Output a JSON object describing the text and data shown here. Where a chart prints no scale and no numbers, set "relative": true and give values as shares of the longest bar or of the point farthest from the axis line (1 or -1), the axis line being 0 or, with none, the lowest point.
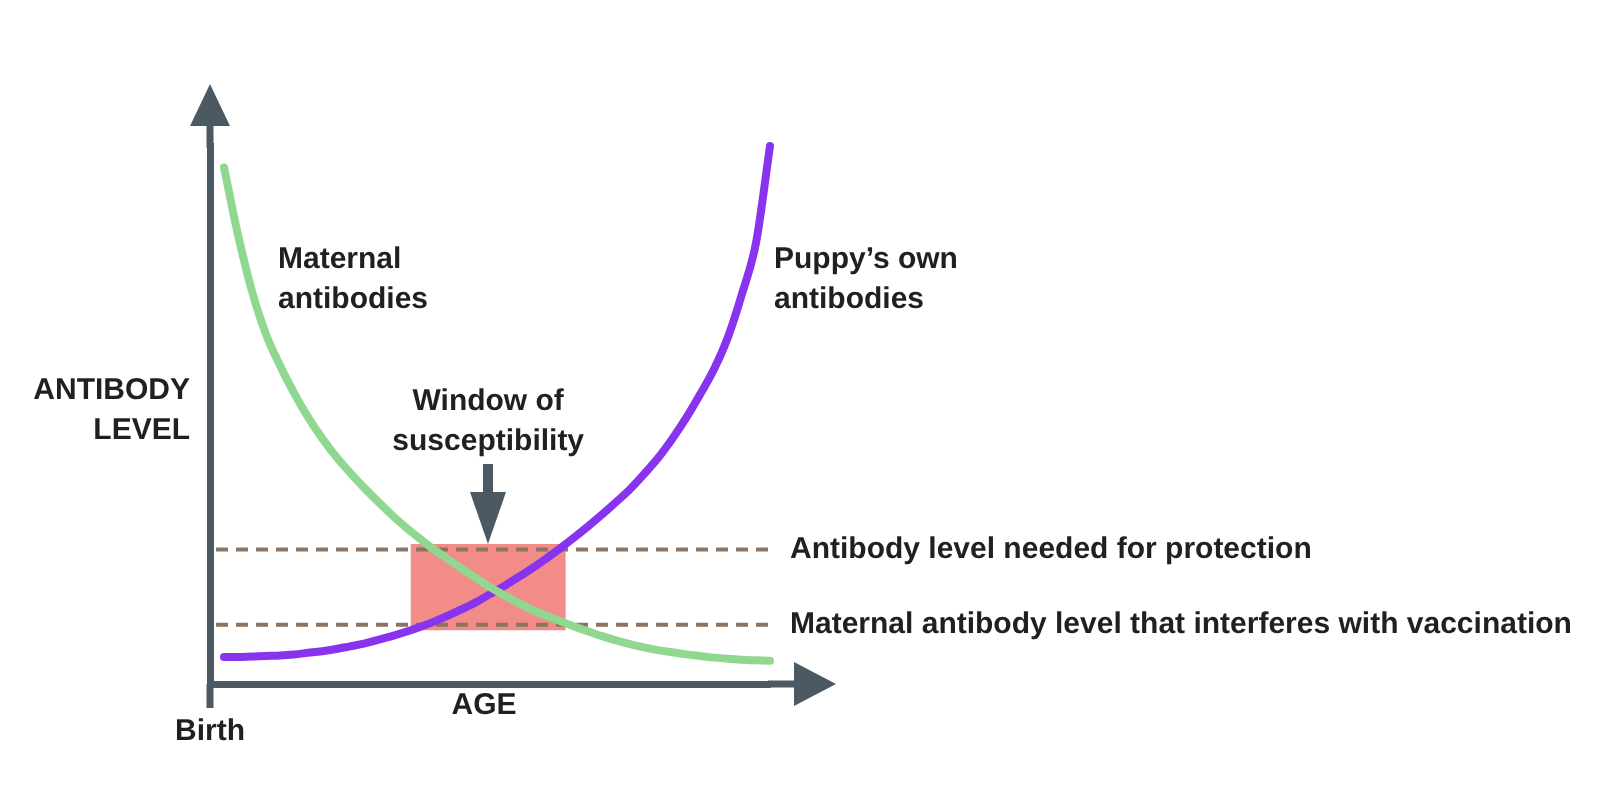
{
  "chart_data": {
    "type": "line",
    "relative": true,
    "xlabel": "AGE",
    "ylabel": "ANTIBODY LEVEL",
    "tick_labels": false,
    "annotations": [
      "Birth"
    ],
    "categories": [
      null,
      null,
      null,
      null,
      null,
      null,
      null,
      null,
      null,
      null,
      null,
      null,
      null,
      null,
      null,
      null,
      null,
      null,
      null,
      null,
      null,
      null,
      null,
      null,
      null,
      null,
      null,
      null,
      null,
      null,
      null,
      null,
      null,
      null,
      null,
      null,
      null,
      null,
      null,
      null,
      null
    ],
    "series": [
      {
        "name": "Maternal antibodies",
        "color": "#90d890",
        "values": [
          null,
          0.96,
          0.835,
          0.73,
          0.65,
          0.592,
          0.541,
          0.496,
          0.457,
          0.423,
          0.393,
          0.365,
          0.339,
          0.314,
          0.291,
          0.27,
          0.25,
          0.232,
          0.214,
          0.197,
          0.18,
          0.165,
          0.151,
          0.138,
          0.127,
          0.117,
          0.107,
          0.098,
          0.089,
          0.081,
          0.074,
          0.068,
          0.063,
          0.059,
          0.055,
          0.052,
          0.049,
          0.047,
          0.045,
          0.044,
          0.043
        ]
      },
      {
        "name": "Puppy’s own antibodies",
        "color": "#8833ee",
        "values": [
          null,
          0.05,
          0.05,
          0.051,
          0.052,
          0.053,
          0.055,
          0.058,
          0.061,
          0.065,
          0.07,
          0.075,
          0.082,
          0.089,
          0.097,
          0.106,
          0.116,
          0.127,
          0.139,
          0.152,
          0.167,
          0.182,
          0.198,
          0.215,
          0.233,
          0.252,
          0.272,
          0.293,
          0.315,
          0.338,
          0.362,
          0.39,
          0.42,
          0.455,
          0.494,
          0.538,
          0.585,
          0.645,
          0.725,
          0.82,
          1
        ]
      }
    ],
    "ref_lines": [
      {
        "axis": "y",
        "value": 0.25,
        "label": "Antibody level needed for protection",
        "color": "#8b7460",
        "line_style": "dashed"
      },
      {
        "axis": "y",
        "value": 0.11,
        "label": "Maternal antibody level that interferes with vaccination",
        "color": "#8b7460",
        "line_style": "dashed"
      }
    ],
    "bands": [
      {
        "axis": "y",
        "from": 0.1,
        "to": 0.26,
        "label": "Window of susceptibility",
        "color": "#f28c88"
      }
    ]
  }
}
